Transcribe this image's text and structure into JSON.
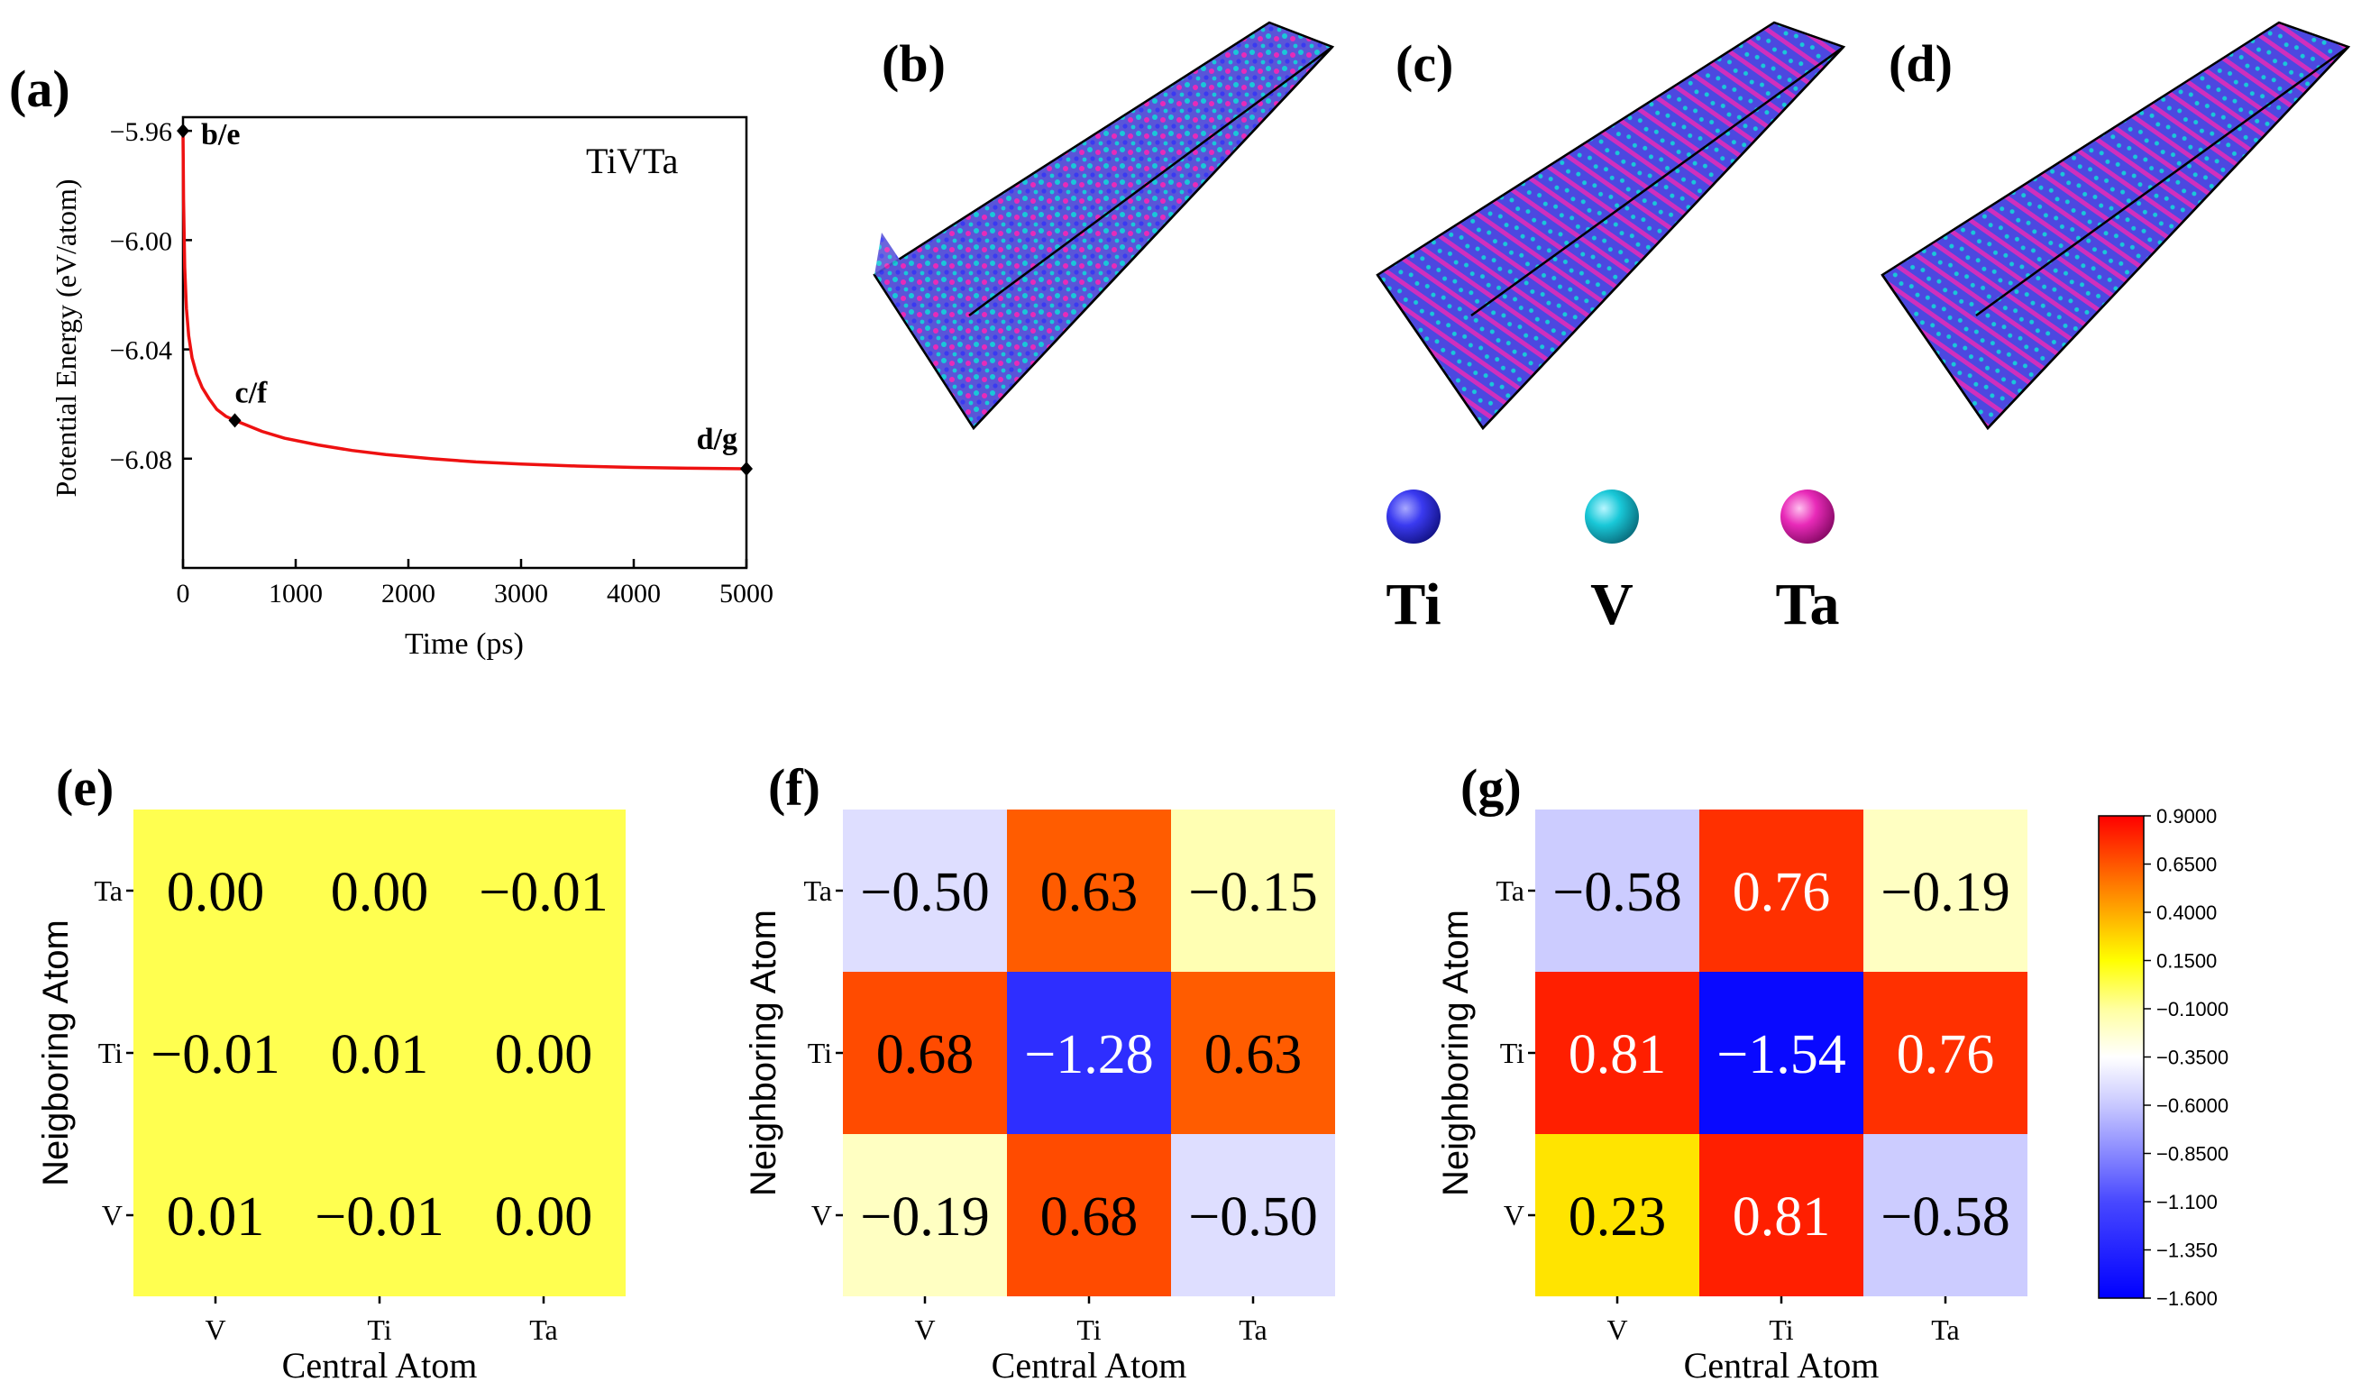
{
  "panels": {
    "a": "(a)",
    "b": "(b)",
    "c": "(c)",
    "d": "(d)",
    "e": "(e)",
    "f": "(f)",
    "g": "(g)"
  },
  "legend": {
    "atoms": [
      {
        "name": "Ti",
        "color": "#3a3af0"
      },
      {
        "name": "V",
        "color": "#19c8d8"
      },
      {
        "name": "Ta",
        "color": "#e82ab8"
      }
    ]
  },
  "colors": {
    "line": "#ee1111",
    "atoms_bg": "#5a55d8",
    "atom_blue": "#3a3af0",
    "atom_cyan": "#19c8d8",
    "atom_pink": "#e82ab8"
  },
  "chart_data": [
    {
      "type": "line",
      "panel": "a",
      "title": "TiVTa",
      "xlabel": "Time (ps)",
      "ylabel": "Potential Energy (eV/atom)",
      "xlim": [
        0,
        5000
      ],
      "ylim": [
        -6.12,
        -5.955
      ],
      "xticks": [
        0,
        1000,
        2000,
        3000,
        4000,
        5000
      ],
      "xtick_labels": [
        "0",
        "1000",
        "2000",
        "3000",
        "4000",
        "5000"
      ],
      "yticks": [
        -5.96,
        -6.0,
        -6.04,
        -6.08
      ],
      "ytick_labels": [
        "−5.96",
        "−6.00",
        "−6.04",
        "−6.08"
      ],
      "series": [
        {
          "name": "TiVTa",
          "x": [
            0,
            5,
            15,
            30,
            50,
            80,
            120,
            170,
            230,
            300,
            380,
            460,
            550,
            700,
            900,
            1200,
            1500,
            1800,
            2200,
            2600,
            3000,
            3500,
            4000,
            4500,
            5000
          ],
          "y": [
            -5.96,
            -5.985,
            -6.01,
            -6.025,
            -6.035,
            -6.043,
            -6.049,
            -6.054,
            -6.058,
            -6.062,
            -6.0645,
            -6.066,
            -6.0675,
            -6.07,
            -6.0725,
            -6.075,
            -6.077,
            -6.0785,
            -6.08,
            -6.0812,
            -6.082,
            -6.0827,
            -6.0832,
            -6.0835,
            -6.0837
          ]
        }
      ],
      "markers": [
        {
          "label": "b/e",
          "x": 0,
          "y": -5.96
        },
        {
          "label": "c/f",
          "x": 460,
          "y": -6.066
        },
        {
          "label": "d/g",
          "x": 5000,
          "y": -6.0837
        }
      ]
    },
    {
      "type": "heatmap",
      "panel": "e",
      "xlabel": "Central Atom",
      "ylabel": "Neigboring Atom",
      "x_categories": [
        "V",
        "Ti",
        "Ta"
      ],
      "y_categories": [
        "Ta",
        "Ti",
        "V"
      ],
      "values": [
        [
          0.0,
          0.0,
          -0.01
        ],
        [
          -0.01,
          0.01,
          0.0
        ],
        [
          0.01,
          -0.01,
          0.0
        ]
      ],
      "labels": [
        [
          "0.00",
          "0.00",
          "−0.01"
        ],
        [
          "−0.01",
          "0.01",
          "0.00"
        ],
        [
          "0.01",
          "−0.01",
          "0.00"
        ]
      ]
    },
    {
      "type": "heatmap",
      "panel": "f",
      "xlabel": "Central Atom",
      "ylabel": "Neighboring Atom",
      "x_categories": [
        "V",
        "Ti",
        "Ta"
      ],
      "y_categories": [
        "Ta",
        "Ti",
        "V"
      ],
      "values": [
        [
          -0.5,
          0.63,
          -0.15
        ],
        [
          0.68,
          -1.28,
          0.63
        ],
        [
          -0.19,
          0.68,
          -0.5
        ]
      ],
      "labels": [
        [
          "−0.50",
          "0.63",
          "−0.15"
        ],
        [
          "0.68",
          "−1.28",
          "0.63"
        ],
        [
          "−0.19",
          "0.68",
          "−0.50"
        ]
      ]
    },
    {
      "type": "heatmap",
      "panel": "g",
      "xlabel": "Central Atom",
      "ylabel": "Neighboring Atom",
      "x_categories": [
        "V",
        "Ti",
        "Ta"
      ],
      "y_categories": [
        "Ta",
        "Ti",
        "V"
      ],
      "values": [
        [
          -0.58,
          0.76,
          -0.19
        ],
        [
          0.81,
          -1.54,
          0.76
        ],
        [
          0.23,
          0.81,
          -0.58
        ]
      ],
      "labels": [
        [
          "−0.58",
          "0.76",
          "−0.19"
        ],
        [
          "0.81",
          "−1.54",
          "0.76"
        ],
        [
          "0.23",
          "0.81",
          "−0.58"
        ]
      ]
    }
  ],
  "colorbar": {
    "range": [
      -1.6,
      0.9
    ],
    "tick_labels": [
      "0.9000",
      "0.6500",
      "0.4000",
      "0.1500",
      "−0.1000",
      "−0.3500",
      "−0.6000",
      "−0.8500",
      "−1.100",
      "−1.350",
      "−1.600"
    ]
  }
}
